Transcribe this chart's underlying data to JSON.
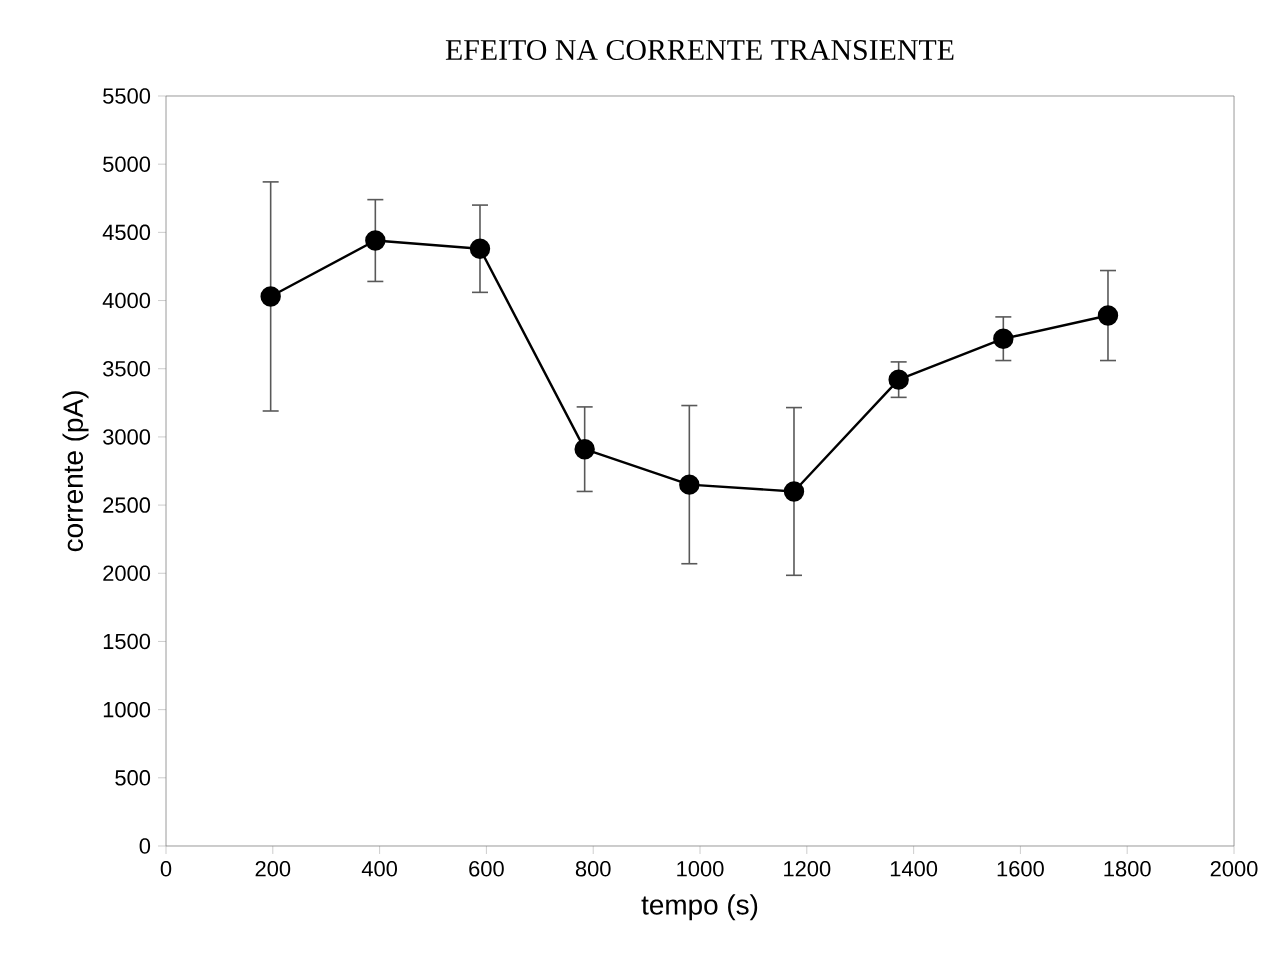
{
  "chart_data": {
    "type": "line",
    "title": "EFEITO NA CORRENTE TRANSIENTE",
    "xlabel": "tempo (s)",
    "ylabel": "corrente (pA)",
    "x": [
      196,
      392,
      588,
      784,
      980,
      1176,
      1372,
      1568,
      1764
    ],
    "series": [
      {
        "color": "#000000",
        "values": [
          4030,
          4440,
          4380,
          2910,
          2650,
          2600,
          3420,
          3720,
          3890
        ],
        "errors": [
          840,
          300,
          320,
          310,
          580,
          615,
          130,
          160,
          330
        ]
      }
    ],
    "xlim": [
      0,
      2000
    ],
    "xticks": [
      0,
      200,
      400,
      600,
      800,
      1000,
      1200,
      1400,
      1600,
      1800,
      2000
    ],
    "ylim": [
      0,
      5500
    ],
    "yticks": [
      0,
      500,
      1000,
      1500,
      2000,
      2500,
      3000,
      3500,
      4000,
      4500,
      5000,
      5500
    ],
    "marker": "circle",
    "line_style": "solid"
  }
}
